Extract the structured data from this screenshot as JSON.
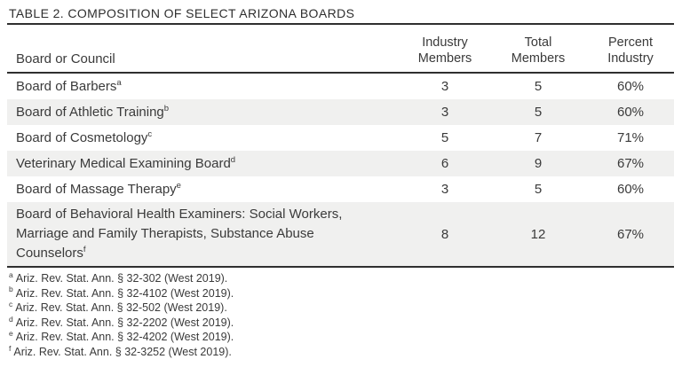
{
  "table": {
    "title": "TABLE 2. COMPOSITION OF SELECT ARIZONA BOARDS",
    "columns": {
      "board": {
        "label": "Board or Council"
      },
      "industry": {
        "line1": "Industry",
        "line2": "Members"
      },
      "total": {
        "line1": "Total",
        "line2": "Members"
      },
      "percent": {
        "line1": "Percent",
        "line2": "Industry"
      }
    },
    "rows": [
      {
        "board": {
          "text": "Board of Barbers",
          "note": "a"
        },
        "industry": "3",
        "total": "5",
        "percent": "60%"
      },
      {
        "board": {
          "text": "Board of Athletic Training",
          "note": "b"
        },
        "industry": "3",
        "total": "5",
        "percent": "60%"
      },
      {
        "board": {
          "text": "Board of Cosmetology",
          "note": "c"
        },
        "industry": "5",
        "total": "7",
        "percent": "71%"
      },
      {
        "board": {
          "text": "Veterinary Medical Examining Board",
          "note": "d"
        },
        "industry": "6",
        "total": "9",
        "percent": "67%"
      },
      {
        "board": {
          "text": "Board of Massage Therapy",
          "note": "e"
        },
        "industry": "3",
        "total": "5",
        "percent": "60%"
      },
      {
        "board": {
          "text": "Board of Behavioral Health Examiners: Social Workers,\nMarriage and Family Therapists, Substance Abuse\nCounselors",
          "note": "f"
        },
        "industry": "8",
        "total": "12",
        "percent": "67%"
      }
    ],
    "footnotes": [
      {
        "marker": "a",
        "text": "Ariz. Rev. Stat. Ann. § 32-302 (West 2019)."
      },
      {
        "marker": "b",
        "text": "Ariz. Rev. Stat. Ann. § 32-4102 (West 2019)."
      },
      {
        "marker": "c",
        "text": "Ariz. Rev. Stat. Ann. § 32-502 (West 2019)."
      },
      {
        "marker": "d",
        "text": "Ariz. Rev. Stat. Ann. § 32-2202 (West 2019)."
      },
      {
        "marker": "e",
        "text": "Ariz. Rev. Stat. Ann. § 32-4202 (West 2019)."
      },
      {
        "marker": "f",
        "text": "Ariz. Rev. Stat. Ann. § 32-3252 (West 2019)."
      }
    ],
    "colors": {
      "row_shading": "#f0f0ef",
      "rule": "#2f2f2f",
      "text": "#3a3a3a"
    }
  }
}
